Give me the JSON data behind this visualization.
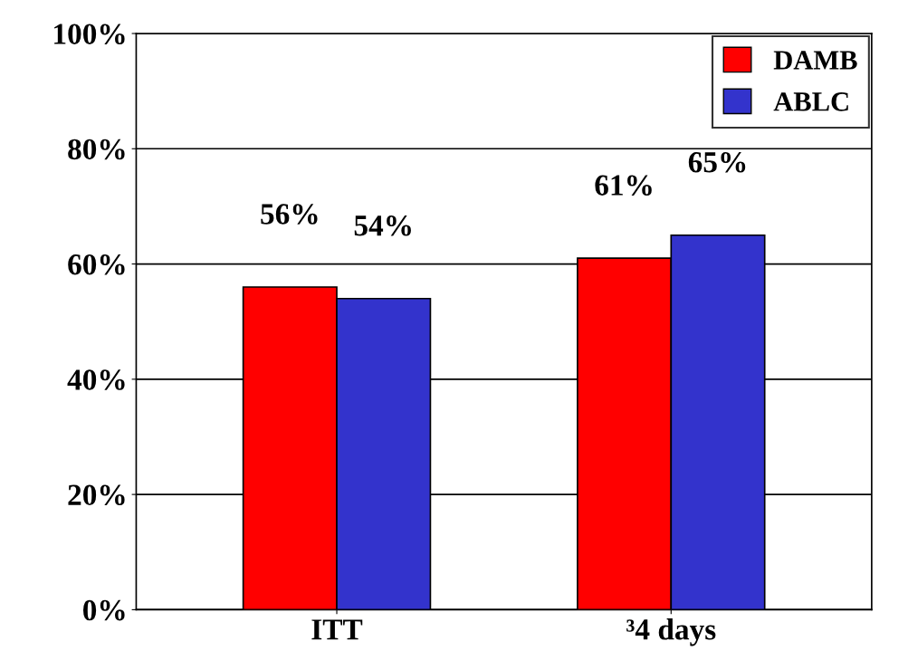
{
  "chart_data": {
    "type": "bar",
    "categories": [
      "ITT",
      "³4 days"
    ],
    "series": [
      {
        "name": "DAMB",
        "color": "#ff0000",
        "values": [
          56,
          61
        ],
        "value_labels": [
          "56%",
          "61%"
        ]
      },
      {
        "name": "ABLC",
        "color": "#3333cc",
        "values": [
          54,
          65
        ],
        "value_labels": [
          "54%",
          "65%"
        ]
      }
    ],
    "ylim": [
      0,
      100
    ],
    "yticks": [
      {
        "value": 0,
        "label": "0%"
      },
      {
        "value": 20,
        "label": "20%"
      },
      {
        "value": 40,
        "label": "40%"
      },
      {
        "value": 60,
        "label": "60%"
      },
      {
        "value": 80,
        "label": "80%"
      },
      {
        "value": 100,
        "label": "100%"
      }
    ],
    "grid": "y",
    "legend": "top right"
  }
}
